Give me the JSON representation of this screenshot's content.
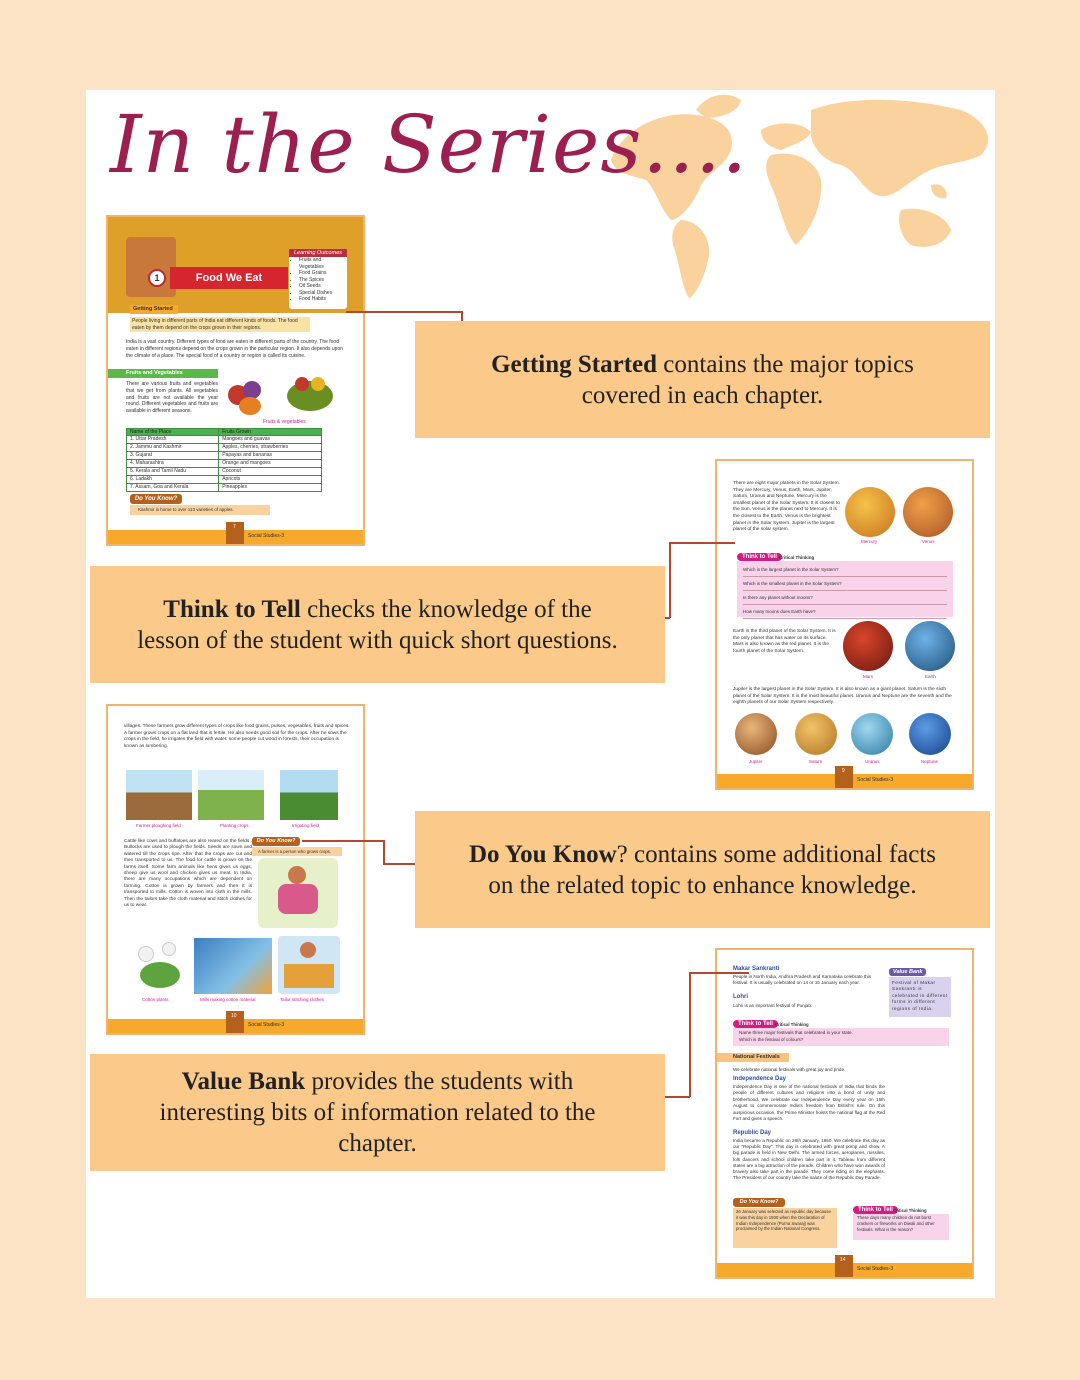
{
  "title": "In the Series....",
  "callouts": {
    "getting_started": {
      "highlight": "Getting Started",
      "text": " contains the major topics covered in each chapter."
    },
    "think_to_tell": {
      "highlight": "Think to Tell",
      "text": " checks the knowledge of the lesson of the student with quick short questions."
    },
    "do_you_know": {
      "highlight": "Do You Know",
      "text": "? contains some additional facts on the related topic to enhance knowledge."
    },
    "value_bank": {
      "highlight": "Value Bank",
      "text": " provides the students with interesting bits of information related to the chapter."
    }
  },
  "thumb1": {
    "chapter_no": "1",
    "chapter_title": "Food We Eat",
    "outcomes_title": "Learning Outcomes",
    "outcomes": [
      "Fruits and Vegetables",
      "Food Grains",
      "The Spices",
      "Oil Seeds",
      "Special Dishes",
      "Food Habits"
    ],
    "getting_started": "Getting Started",
    "intro": "People living in different parts of India eat different kinds of foods. The food eaten by them depend on the crops grown in their regions.",
    "para": "India is a vast country. Different types of food are eaten in different parts of the country. The food eaten in different regions depend on the crops grown in the particular region. It also depends upon the climate of a place. The special food of a country or region is called its cuisine.",
    "section": "Fruits and Vegetables",
    "section_text": "There are various fruits and vegetables that we get from plants. All vegetables and fruits are not available the year round. Different vegetables and fruits are available in different seasons.",
    "caption": "Fruits & vegetables",
    "table_head": [
      "Name of the Place",
      "Fruits Grown"
    ],
    "table_rows": [
      [
        "1.  Uttar Pradesh",
        "Mangoes and guavas"
      ],
      [
        "2.  Jammu and Kashmir",
        "Apples, cherries, strawberries"
      ],
      [
        "3.  Gujarat",
        "Papayas and bananas"
      ],
      [
        "4.  Maharashtra",
        "Orange and mangoes"
      ],
      [
        "5.  Kerala and Tamil Nadu",
        "Coconut"
      ],
      [
        "6.  Ladakh",
        "Apricots"
      ],
      [
        "7.  Assam, Goa and Kerala",
        "Pineapples"
      ]
    ],
    "dyk_label": "Do You Know?",
    "dyk_text": "Kashmir is home to over 113 varieties of apples.",
    "page_no": "7",
    "footer": "Social Studies-3"
  },
  "thumb2": {
    "para": "There are eight major planets in the Solar System. They are Mercury, Venus, Earth, Mars, Jupiter, Saturn, Uranus and Neptune. Mercury is the smallest planet of the Solar System. It is closest to the Sun. Venus is the planet next to Mercury. It is the closest to the Earth. Venus is the brightest planet in the Solar System. Jupiter is the largest planet of the solar system.",
    "labels_top": [
      "Mercury",
      "Venus"
    ],
    "ttt_label": "Think to Tell",
    "ttt_sub": "Critical Thinking",
    "questions": [
      "Which is the  largest planet in the Solar System?",
      "Which is the smallest  planet in the Solar System?",
      "Is there any planet without moons?",
      "How many moons does Earth have?"
    ],
    "earth_text": "Earth is the third planet of the Solar System. It is the only planet that has water on its surface. Mars is also known as the red planet. It is the fourth planet of the Solar System.",
    "labels_mid": [
      "Mars",
      "Earth"
    ],
    "jupiter_text": "Jupiter is the largest planet in the Solar System. It is also known as a giant planet. Saturn is the sixth planet of the Solar System. It is the most beautiful planet. Uranus and Neptune are the seventh and the eighth planets of our Solar System respectively.",
    "labels_bottom": [
      "Jupiter",
      "Saturn",
      "Uranus",
      "Neptune"
    ],
    "page_no": "9",
    "footer": "Social Studies-3"
  },
  "thumb3": {
    "para": "villages. These farmers grow different types of crops like food grains, pulses, vegetables, fruits and spices. A farmer grows crops on a flat land that is fertile. He also needs good soil for the crops. After he sows the crops in the field, he irrigates the field with water. some people cut wood in forests, their occupation is known as lumbering.",
    "captions": [
      "Farmer ploughing field",
      "Planting crops",
      "Irrigating field"
    ],
    "para2": "Cattle like cows and buffaloes are also reared on the fields . Bullocks are used to plough the fields. Seeds are sown and watered till the crops ripe. After that the crops are cut and then transported to us. The food for cattle is grown on the farms itself. Some farm animals like hens gives us eggs, sheep give us wool and chicken gives us meat. In India, there are many occupations which are dependent on farming. Cotton is grown by farmers and then it is transported to mills. Cotton is woven into cloth in the mills. Then the tailors take the cloth material and stitch clothes for us to wear.",
    "dyk_label": "Do You Know?",
    "dyk_text": "A farmer is a person who grows crops.",
    "captions2": [
      "Cotton plants",
      "Mills making cotton material",
      "Tailor stitching clothes"
    ],
    "page_no": "10",
    "footer": "Social Studies-3"
  },
  "thumb4": {
    "h1": "Makar Sankranti",
    "p1": "People in North India, Andhra Pradesh and Karnataka celebrate this festival. It is usually celebrated on 14 or 15 January each year.",
    "h2": "Lohri",
    "p2": "Lohri is an important festival of Punjab.",
    "vb_label": "Value Bank",
    "vb_text": "Festival of Makar Sankranti is celebrated in different forms in different regions of India.",
    "ttt_label": "Think to Tell",
    "ttt_sub": "Critical Thinking",
    "ttt_q": [
      "Name three major festivals that celebrated in your state.",
      "Which is the festival of colours?"
    ],
    "section": "National Festivals",
    "p3": "We celebrate national festivals with great joy and pride.",
    "h3": "Independence Day",
    "p4": "Independence Day is one of the national festivals of India that binds the people of different cultures and religions into a bond of unity and brotherhood. We celebrate our Independence Day every year on 15th August to commemorate India's freedom from British's rule. On this auspicious occasion, the Prime Minister hoists the national flag at the Red Fort and gives a speech.",
    "h4": "Republic Day",
    "p5": "India became a Republic on 26th January, 1950. We celebrate this day as our \"Republic Day\". This day is celebrated with great pomp and show. A big parade is held in New Delhi. The armed forces, aeroplanes, missiles, folk dancers and school children take part in it. Tableau from different states are a big attraction of the parade. Children who have won awards of bravery also take part in the parade. They come riding on the elephants. The President of our country take the salute of the Republic Day Parade.",
    "dyk_label": "Do You Know?",
    "dyk_text": "26 January was selected as republic day because it was this day in 1930 when the Declaration of Indian Independence (Purna Swaraj) was proclaimed by the Indian National Congress.",
    "ttt2_label": "Think to Tell",
    "ttt2_sub": "Critical Thinking",
    "ttt2_q": "These days many children do not burst crackers or fireworks on Diwali and other festivals. What is the reason?",
    "page_no": "14",
    "footer": "Social Studies-3"
  }
}
